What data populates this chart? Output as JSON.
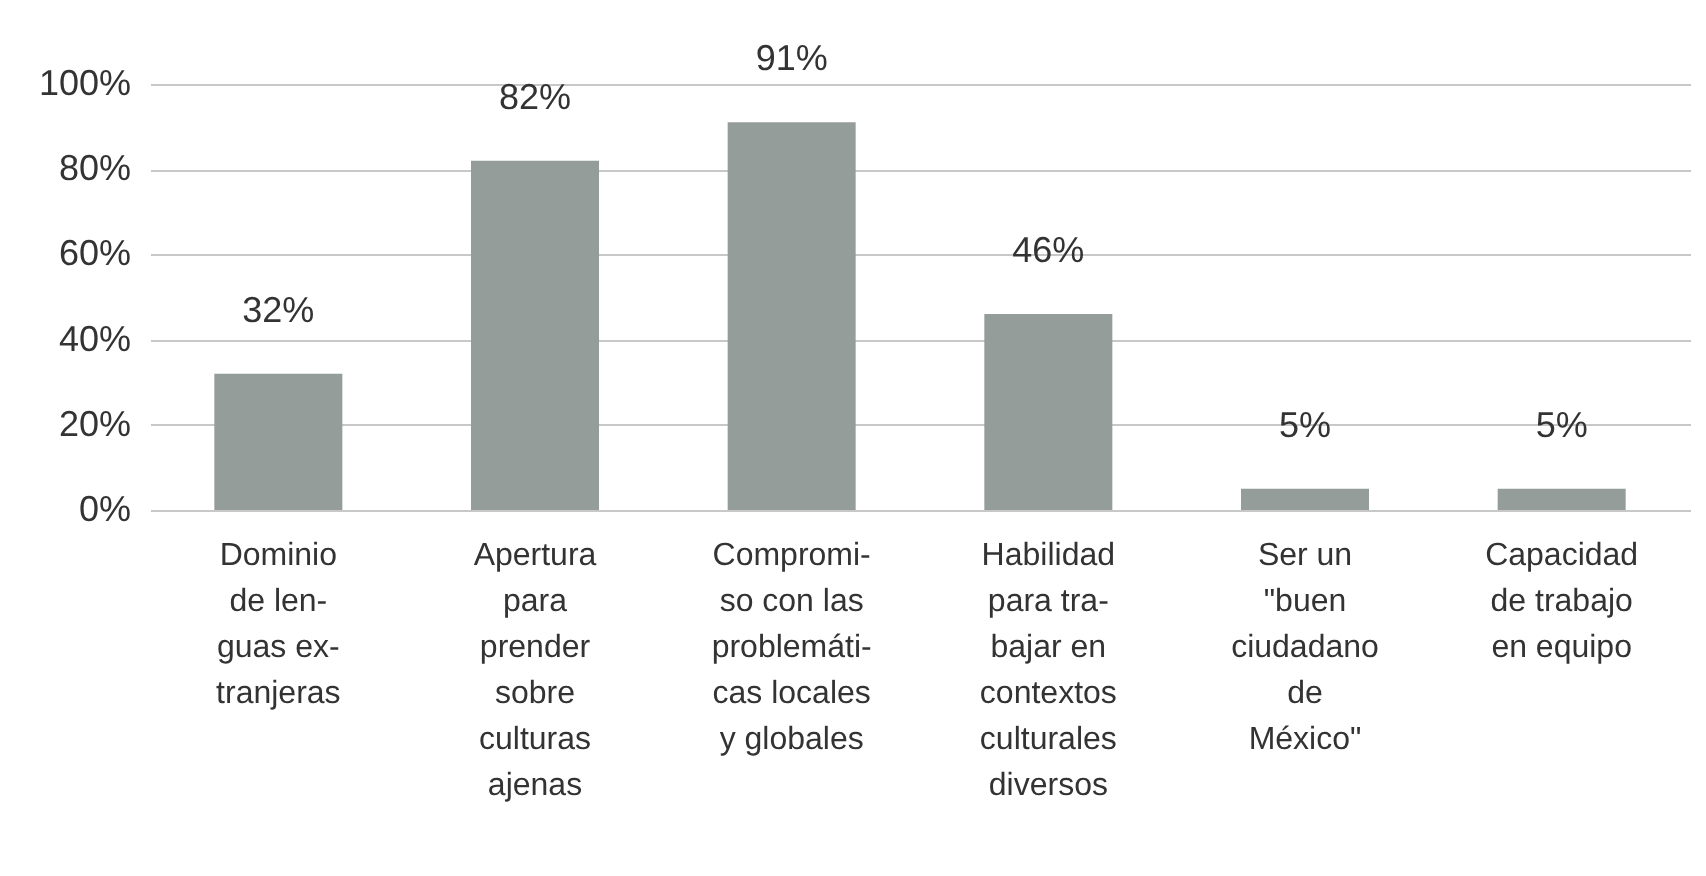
{
  "chart_data": {
    "type": "bar",
    "categories": [
      "Dominio\nde len-\nguas ex-\ntranjeras",
      "Apertura\npara\nprender\nsobre\nculturas\najenas",
      "Compromi-\nso con las\nproblemáti-\ncas locales\ny globales",
      "Habilidad\npara tra-\nbajar en\ncontextos\nculturales\ndiversos",
      "Ser un\n\"buen\nciudadano\nde\nMéxico\"",
      "Capacidad\nde trabajo\nen equipo"
    ],
    "values": [
      32,
      82,
      91,
      46,
      5,
      5
    ],
    "value_labels": [
      "32%",
      "82%",
      "91%",
      "46%",
      "5%",
      "5%"
    ],
    "color": "#959d9b",
    "ylim": [
      0,
      100
    ],
    "yticks": [
      {
        "value": 0,
        "label": "0%"
      },
      {
        "value": 20,
        "label": "20%"
      },
      {
        "value": 40,
        "label": "40%"
      },
      {
        "value": 60,
        "label": "60%"
      },
      {
        "value": 80,
        "label": "80%"
      },
      {
        "value": 100,
        "label": "100%"
      }
    ],
    "grid": "y"
  }
}
